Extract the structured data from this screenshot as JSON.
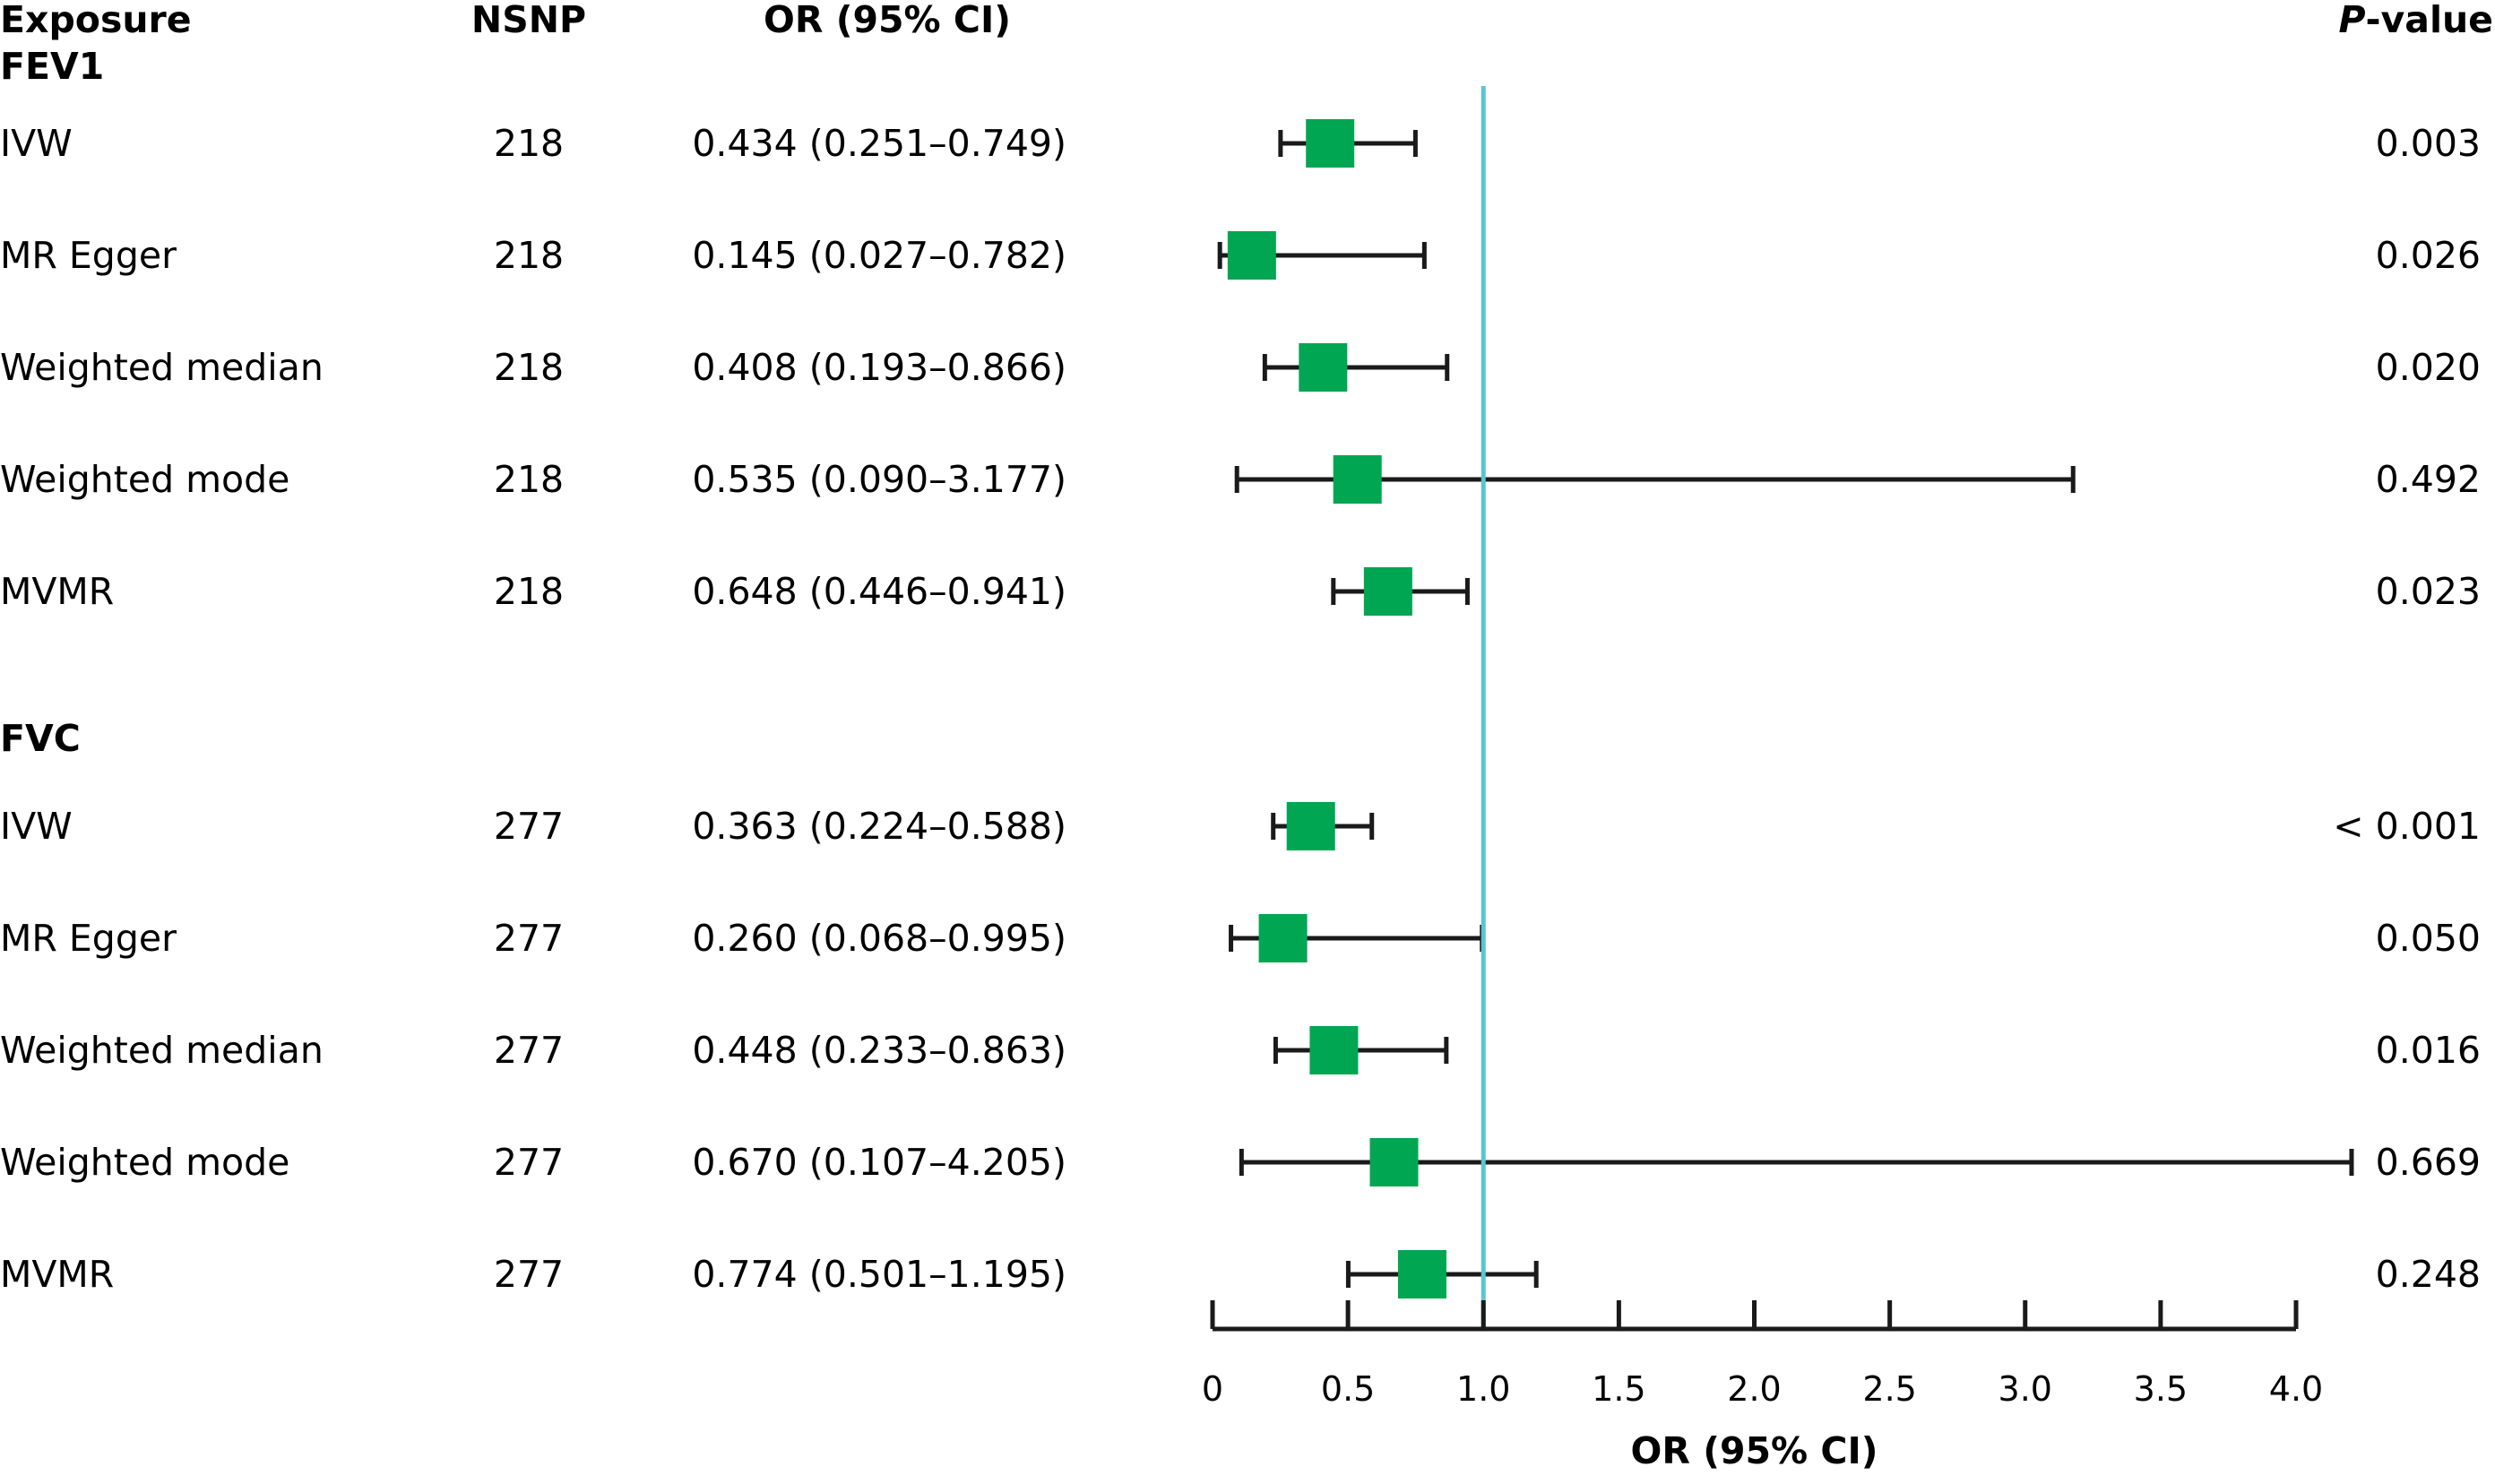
{
  "headers": {
    "exposure": "Exposure",
    "nsnp": "NSNP",
    "or_ci": "OR (95% CI)",
    "p_italic": "P",
    "p_rest": "-value"
  },
  "chart_data": {
    "type": "forest",
    "xlabel": "OR (95% CI)",
    "xlim": [
      0,
      4.0
    ],
    "xticks": [
      "0",
      "0.5",
      "1.0",
      "1.5",
      "2.0",
      "2.5",
      "3.0",
      "3.5",
      "4.0"
    ],
    "reference_line": 1.0,
    "groups": [
      {
        "name": "FEV1",
        "rows": [
          {
            "method": "IVW",
            "nsnp": "218",
            "or_text": "0.434 (0.251–0.749)",
            "or": 0.434,
            "lo": 0.251,
            "hi": 0.749,
            "p": "0.003"
          },
          {
            "method": "MR Egger",
            "nsnp": "218",
            "or_text": "0.145 (0.027–0.782)",
            "or": 0.145,
            "lo": 0.027,
            "hi": 0.782,
            "p": "0.026"
          },
          {
            "method": "Weighted median",
            "nsnp": "218",
            "or_text": "0.408 (0.193–0.866)",
            "or": 0.408,
            "lo": 0.193,
            "hi": 0.866,
            "p": "0.020"
          },
          {
            "method": "Weighted mode",
            "nsnp": "218",
            "or_text": "0.535 (0.090–3.177)",
            "or": 0.535,
            "lo": 0.09,
            "hi": 3.177,
            "p": "0.492"
          },
          {
            "method": "MVMR",
            "nsnp": "218",
            "or_text": "0.648 (0.446–0.941)",
            "or": 0.648,
            "lo": 0.446,
            "hi": 0.941,
            "p": "0.023"
          }
        ]
      },
      {
        "name": "FVC",
        "rows": [
          {
            "method": "IVW",
            "nsnp": "277",
            "or_text": "0.363 (0.224–0.588)",
            "or": 0.363,
            "lo": 0.224,
            "hi": 0.588,
            "p": "< 0.001"
          },
          {
            "method": "MR Egger",
            "nsnp": "277",
            "or_text": "0.260 (0.068–0.995)",
            "or": 0.26,
            "lo": 0.068,
            "hi": 0.995,
            "p": "0.050"
          },
          {
            "method": "Weighted median",
            "nsnp": "277",
            "or_text": "0.448 (0.233–0.863)",
            "or": 0.448,
            "lo": 0.233,
            "hi": 0.863,
            "p": "0.016"
          },
          {
            "method": "Weighted mode",
            "nsnp": "277",
            "or_text": "0.670 (0.107–4.205)",
            "or": 0.67,
            "lo": 0.107,
            "hi": 4.205,
            "p": "0.669"
          },
          {
            "method": "MVMR",
            "nsnp": "277",
            "or_text": "0.774 (0.501–1.195)",
            "or": 0.774,
            "lo": 0.501,
            "hi": 1.195,
            "p": "0.248"
          }
        ]
      }
    ]
  },
  "colors": {
    "marker": "#00a651",
    "reference_line": "#5bc4d1",
    "ink": "#1a1a1a"
  }
}
